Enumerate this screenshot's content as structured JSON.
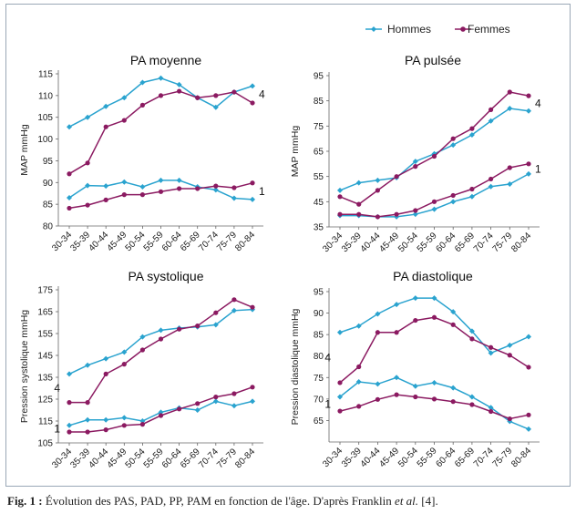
{
  "legend": {
    "items": [
      {
        "label": "Hommes",
        "color": "#2aa3cf"
      },
      {
        "label": "Femmes",
        "color": "#8b1a61"
      }
    ]
  },
  "caption": {
    "label": "Fig. 1 :",
    "text": "Évolution des PAS, PAD, PP, PAM en fonction de l'âge. D'après Franklin",
    "et_al": "et al.",
    "ref": "[4]."
  },
  "chart_data": [
    {
      "type": "line",
      "title": "PA moyenne",
      "xlabel": "",
      "ylabel": "MAP mmHg",
      "ylim": [
        80,
        115
      ],
      "yticks": [
        80,
        85,
        90,
        95,
        100,
        105,
        110,
        115
      ],
      "categories": [
        "30-34",
        "35-39",
        "40-44",
        "45-49",
        "50-54",
        "55-59",
        "60-64",
        "65-69",
        "70-74",
        "75-79",
        "80-84"
      ],
      "annotations": [
        {
          "text": "4",
          "at": "top-series-end"
        },
        {
          "text": "1",
          "at": "bottom-series-end"
        }
      ],
      "series": [
        {
          "name": "Hommes",
          "group": "4",
          "values": [
            102.8,
            105,
            107.5,
            109.5,
            113,
            114,
            112.5,
            109.5,
            107.3,
            110.8,
            112.2
          ]
        },
        {
          "name": "Femmes",
          "group": "4",
          "values": [
            92,
            94.5,
            102.8,
            104.3,
            107.8,
            110,
            111,
            109.5,
            110,
            110.8,
            108.3
          ]
        },
        {
          "name": "Hommes",
          "group": "1",
          "values": [
            86.5,
            89.3,
            89.2,
            90.1,
            89,
            90.5,
            90.5,
            89,
            88.3,
            86.4,
            86.1
          ]
        },
        {
          "name": "Femmes",
          "group": "1",
          "values": [
            84.1,
            84.8,
            86,
            87.2,
            87.2,
            87.9,
            88.6,
            88.6,
            89.2,
            88.8,
            89.9
          ]
        }
      ]
    },
    {
      "type": "line",
      "title": "PA pulsée",
      "xlabel": "",
      "ylabel": "MAP mmHg",
      "ylim": [
        35,
        95
      ],
      "yticks": [
        35,
        45,
        55,
        65,
        75,
        85,
        95
      ],
      "categories": [
        "30-34",
        "35-39",
        "40-44",
        "45-49",
        "50-54",
        "55-59",
        "60-64",
        "65-69",
        "70-74",
        "75-79",
        "80-84"
      ],
      "annotations": [
        {
          "text": "4",
          "at": "top-series-end"
        },
        {
          "text": "1",
          "at": "bottom-series-end"
        }
      ],
      "series": [
        {
          "name": "Hommes",
          "group": "4",
          "values": [
            49.5,
            52.5,
            53.5,
            54.5,
            61,
            64,
            67.5,
            71.5,
            77,
            82,
            81
          ]
        },
        {
          "name": "Femmes",
          "group": "4",
          "values": [
            47,
            44,
            49.5,
            55,
            59,
            63,
            70,
            74,
            81.5,
            88.5,
            87
          ]
        },
        {
          "name": "Hommes",
          "group": "1",
          "values": [
            39.5,
            39.5,
            39,
            39,
            40,
            42,
            45,
            47,
            51,
            52,
            56
          ]
        },
        {
          "name": "Femmes",
          "group": "1",
          "values": [
            40,
            40,
            39,
            40,
            41.5,
            45,
            47.5,
            50,
            54,
            58.5,
            60
          ]
        }
      ]
    },
    {
      "type": "line",
      "title": "PA systolique",
      "xlabel": "",
      "ylabel": "Pression systolique mmHg",
      "ylim": [
        105,
        175
      ],
      "yticks": [
        105,
        115,
        125,
        135,
        145,
        155,
        165,
        175
      ],
      "categories": [
        "30-34",
        "35-39",
        "40-44",
        "45-49",
        "50-54",
        "55-59",
        "60-64",
        "65-69",
        "70-74",
        "75-79",
        "80-84"
      ],
      "annotations": [
        {
          "text": "4",
          "at": "top-series-start"
        },
        {
          "text": "1",
          "at": "bottom-series-start"
        }
      ],
      "series": [
        {
          "name": "Hommes",
          "group": "4",
          "values": [
            136.5,
            140.5,
            143.5,
            146.5,
            153.5,
            156.5,
            157.5,
            158,
            159,
            165.5,
            166
          ]
        },
        {
          "name": "Femmes",
          "group": "4",
          "values": [
            123.5,
            123.5,
            136.5,
            141,
            147.5,
            152.5,
            157,
            158.5,
            164.5,
            170.5,
            167
          ]
        },
        {
          "name": "Hommes",
          "group": "1",
          "values": [
            113,
            115.5,
            115.5,
            116.5,
            115,
            119,
            121,
            120,
            124,
            122,
            124
          ]
        },
        {
          "name": "Femmes",
          "group": "1",
          "values": [
            110,
            110,
            111,
            113,
            113.5,
            117.5,
            120.5,
            123,
            126,
            127.5,
            130.5
          ]
        }
      ]
    },
    {
      "type": "line",
      "title": "PA diastolique",
      "xlabel": "",
      "ylabel": "Pression diastolique mmHg",
      "ylim": [
        60,
        95
      ],
      "yticks": [
        65,
        70,
        75,
        80,
        85,
        90,
        95
      ],
      "categories": [
        "30-34",
        "35-39",
        "40-44",
        "45-49",
        "50-54",
        "55-59",
        "60-64",
        "65-69",
        "70-74",
        "75-79",
        "80-84"
      ],
      "annotations": [
        {
          "text": "4",
          "at": "top-series-start"
        },
        {
          "text": "1",
          "at": "bottom-series-start"
        }
      ],
      "series": [
        {
          "name": "Hommes",
          "group": "4",
          "values": [
            85.5,
            87,
            89.8,
            92,
            93.5,
            93.5,
            90.3,
            85.8,
            80.7,
            82.5,
            84.5
          ]
        },
        {
          "name": "Femmes",
          "group": "4",
          "values": [
            73.8,
            77.5,
            85.5,
            85.5,
            88.3,
            89,
            87.3,
            84,
            82,
            80.2,
            77.4
          ]
        },
        {
          "name": "Hommes",
          "group": "1",
          "values": [
            70.5,
            74,
            73.5,
            75,
            73,
            73.8,
            72.6,
            70.5,
            68,
            64.8,
            63
          ]
        },
        {
          "name": "Femmes",
          "group": "1",
          "values": [
            67.2,
            68.3,
            69.9,
            71,
            70.5,
            70,
            69.4,
            68.7,
            67.1,
            65.4,
            66.3
          ]
        }
      ]
    }
  ]
}
